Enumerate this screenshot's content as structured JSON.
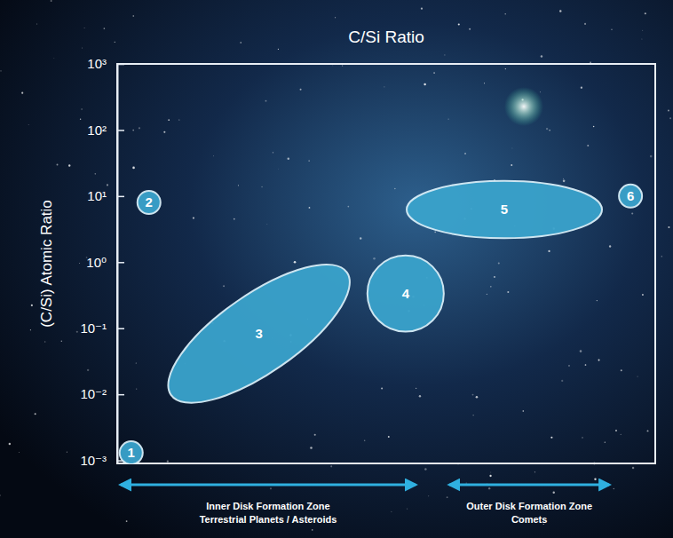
{
  "chart_data": {
    "type": "region",
    "title": "C/Si Ratio",
    "y_label": "(C/Si) Atomic Ratio",
    "log": "y",
    "tick_labels": "y",
    "color": "#3aa3cc",
    "xlim": [
      0,
      100
    ],
    "ylim": [
      0.0009,
      1000
    ],
    "yticks": [
      {
        "value": 1000,
        "label": "10³"
      },
      {
        "value": 100,
        "label": "10²"
      },
      {
        "value": 10,
        "label": "10¹"
      },
      {
        "value": 1,
        "label": "10⁰"
      },
      {
        "value": 0.1,
        "label": "10⁻¹"
      },
      {
        "value": 0.01,
        "label": "10⁻²"
      },
      {
        "value": 0.001,
        "label": "10⁻³"
      }
    ],
    "regions": [
      {
        "label": "1",
        "marker": "circle",
        "x": [
          2.6
        ],
        "y": [
          0.0013
        ]
      },
      {
        "label": "2",
        "marker": "circle",
        "x": [
          5.9
        ],
        "y": [
          8
        ]
      },
      {
        "label": "3",
        "marker": "tilted_ellipse",
        "x": [
          10,
          42.7
        ],
        "y": [
          0.0098,
          0.7
        ]
      },
      {
        "label": "4",
        "marker": "ellipse",
        "x": [
          46.5,
          60.7
        ],
        "y": [
          0.089,
          1.26
        ]
      },
      {
        "label": "5",
        "marker": "ellipse",
        "x": [
          53.8,
          90.1
        ],
        "y": [
          2.3,
          17
        ]
      },
      {
        "label": "6",
        "marker": "circle",
        "x": [
          95.4
        ],
        "y": [
          10
        ]
      }
    ],
    "annotations": [
      {
        "text": [
          "Inner Disk Formation Zone",
          "Terrestrial Planets / Asteroids"
        ],
        "x": [
          0,
          56.1
        ]
      },
      {
        "text": [
          "Outer Disk Formation Zone",
          "Comets"
        ],
        "x": [
          61.1,
          92.1
        ]
      }
    ]
  }
}
